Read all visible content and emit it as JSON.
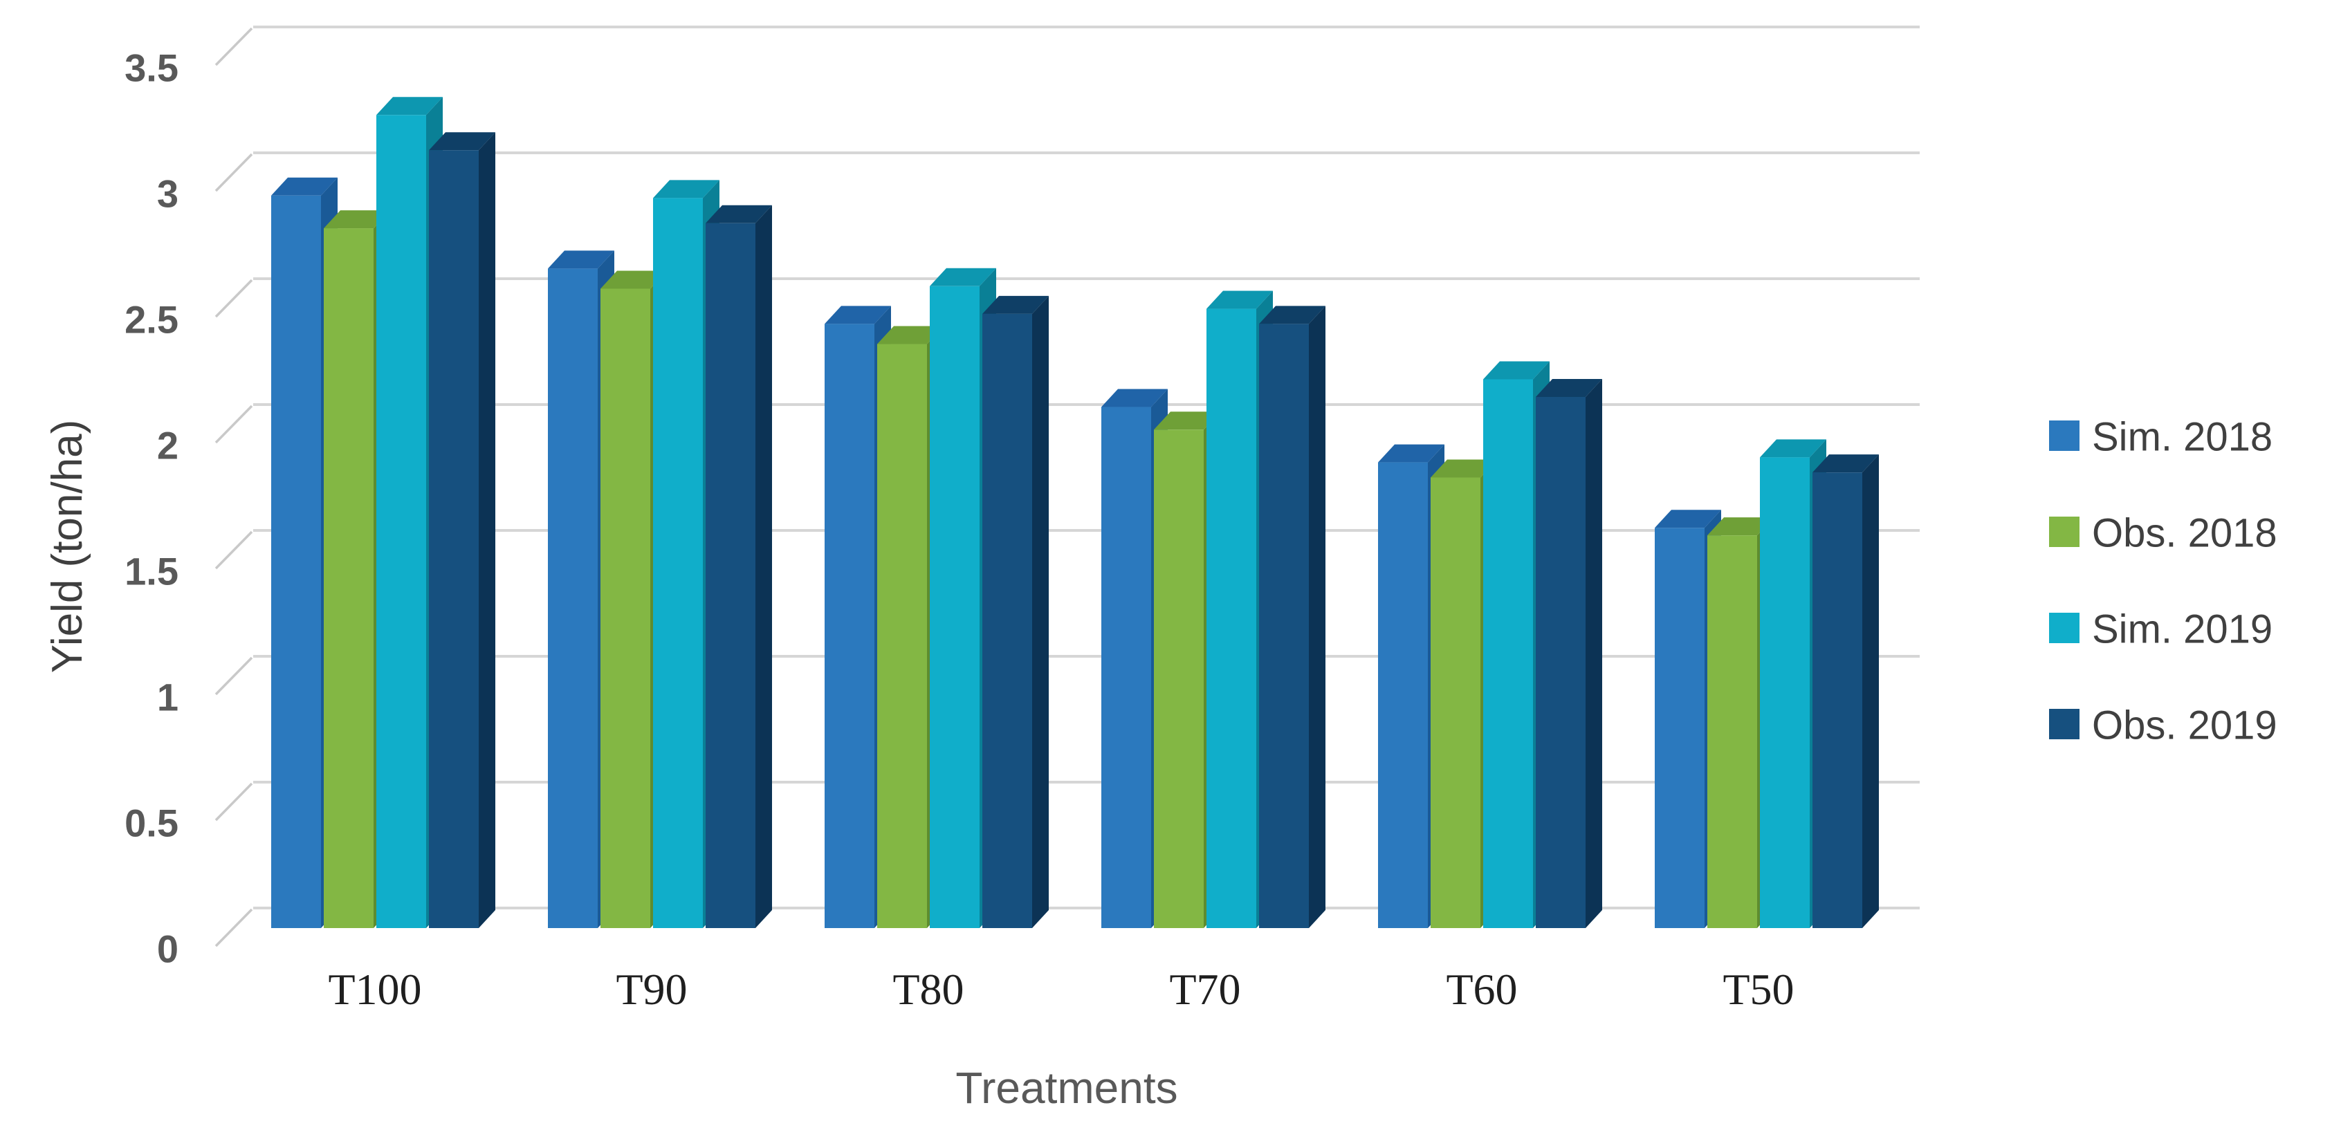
{
  "chart_data": {
    "type": "bar",
    "style": "3d-clustered-column",
    "categories": [
      "T100",
      "T90",
      "T80",
      "T70",
      "T60",
      "T50"
    ],
    "series": [
      {
        "name": "Sim. 2018",
        "color": "#2B79BE",
        "side_color": "#1A5A97",
        "top_color": "#2064A8",
        "values": [
          2.91,
          2.62,
          2.4,
          2.07,
          1.85,
          1.59
        ]
      },
      {
        "name": "Obs. 2018",
        "color": "#83B744",
        "side_color": "#5E8C2F",
        "top_color": "#6FA037",
        "values": [
          2.78,
          2.54,
          2.32,
          1.98,
          1.79,
          1.56
        ]
      },
      {
        "name": "Sim. 2019",
        "color": "#10AECA",
        "side_color": "#0A8096",
        "top_color": "#0D97B0",
        "values": [
          3.23,
          2.9,
          2.55,
          2.46,
          2.18,
          1.87
        ]
      },
      {
        "name": "Obs. 2019",
        "color": "#16507F",
        "side_color": "#0C3355",
        "top_color": "#0F3F66",
        "values": [
          3.09,
          2.8,
          2.44,
          2.4,
          2.11,
          1.81
        ]
      }
    ],
    "title": "",
    "xlabel": "Treatments",
    "ylabel": "Yield (ton/ha)",
    "ylim": [
      0,
      3.5
    ],
    "ytick_step": 0.5,
    "ytick_labels": [
      "0",
      "0.5",
      "1",
      "1.5",
      "2",
      "2.5",
      "3",
      "3.5"
    ],
    "grid": true,
    "legend_position": "right",
    "colors": {
      "gridline": "#D6D6D6",
      "tick_line": "#C9C9C9",
      "ytick_text": "#595959",
      "category_text": "#1F1F1F",
      "xlabel_text": "#595959",
      "ylabel_text": "#3F3F3F",
      "legend_text": "#404040",
      "background": "#FFFFFF"
    }
  }
}
